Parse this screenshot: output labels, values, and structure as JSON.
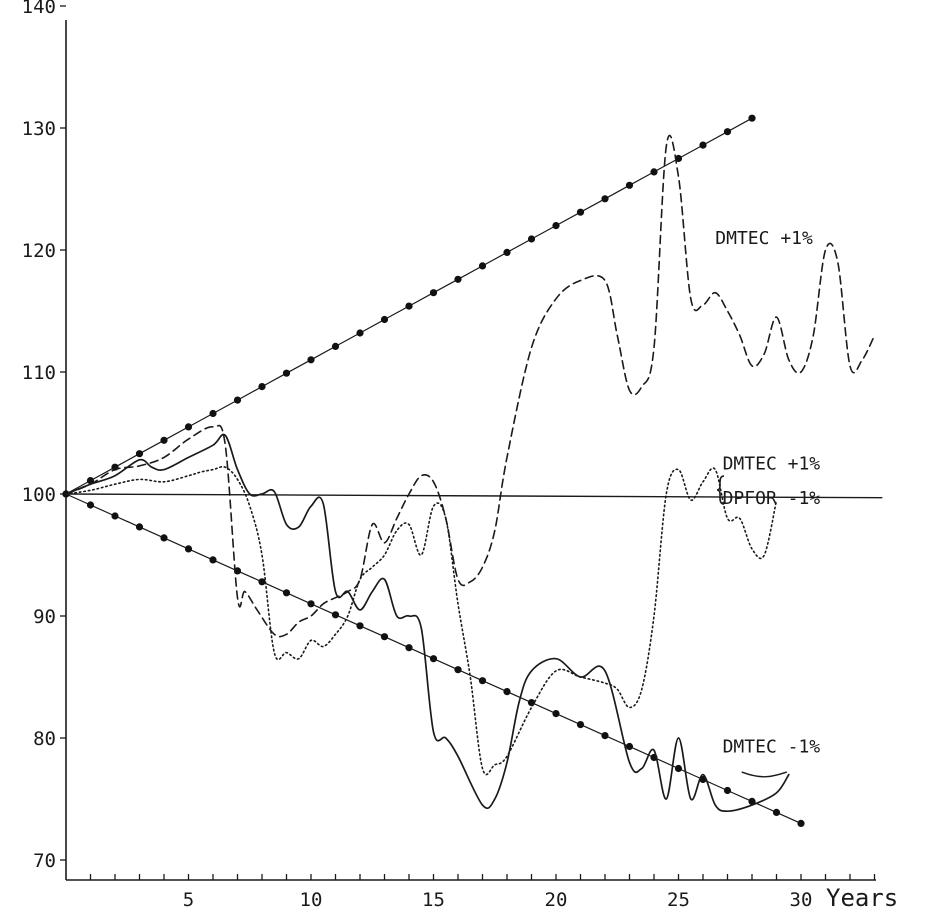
{
  "chart_data": {
    "type": "line",
    "title": "",
    "xlabel": "Years",
    "ylabel": "",
    "xlim": [
      0,
      33
    ],
    "ylim": [
      70,
      140
    ],
    "x_ticks": [
      5,
      10,
      15,
      20,
      25,
      30
    ],
    "y_ticks": [
      70,
      80,
      90,
      100,
      110,
      120,
      130,
      140
    ],
    "grid": false,
    "annotations": [
      {
        "text": "DMTEC +1%",
        "x": 26.5,
        "y": 120.5
      },
      {
        "text": "DMTEC +1%",
        "x": 26.8,
        "y": 102.0
      },
      {
        "text": "DPFOR -1%",
        "x": 26.8,
        "y": 99.2
      },
      {
        "text": "DMTEC -1%",
        "x": 26.8,
        "y": 78.8
      }
    ],
    "series": [
      {
        "style": "dotted-line-with-markers",
        "x": [
          0,
          1,
          2,
          3,
          4,
          5,
          6,
          7,
          8,
          9,
          10,
          11,
          12,
          13,
          14,
          15,
          16,
          17,
          18,
          19,
          20,
          21,
          22,
          23,
          24,
          25,
          26,
          27,
          28
        ],
        "y": [
          100,
          101.1,
          102.2,
          103.3,
          104.4,
          105.5,
          106.6,
          107.7,
          108.8,
          109.9,
          111,
          112.1,
          113.2,
          114.3,
          115.4,
          116.5,
          117.6,
          118.7,
          119.8,
          120.9,
          122,
          123.1,
          124.2,
          125.3,
          126.4,
          127.5,
          128.6,
          129.7,
          130.8
        ]
      },
      {
        "style": "dotted-line-with-markers",
        "x": [
          0,
          1,
          2,
          3,
          4,
          5,
          6,
          7,
          8,
          9,
          10,
          11,
          12,
          13,
          14,
          15,
          16,
          17,
          18,
          19,
          20,
          21,
          22,
          23,
          24,
          25,
          26,
          27,
          28,
          29,
          30
        ],
        "y": [
          100,
          99.1,
          98.2,
          97.3,
          96.4,
          95.5,
          94.6,
          93.7,
          92.8,
          91.9,
          91,
          90.1,
          89.2,
          88.3,
          87.4,
          86.5,
          85.6,
          84.7,
          83.8,
          82.9,
          82,
          81.1,
          80.2,
          79.3,
          78.4,
          77.5,
          76.6,
          75.7,
          74.8,
          73.9,
          73
        ]
      },
      {
        "style": "solid-thin",
        "x": [
          0,
          33.3
        ],
        "y": [
          100,
          99.7
        ]
      },
      {
        "style": "dashed",
        "x": [
          0,
          1,
          2,
          3,
          4,
          5,
          6,
          6.5,
          7,
          7.3,
          7.8,
          8.5,
          9,
          9.5,
          10,
          10.5,
          11,
          11.5,
          12,
          12.5,
          13,
          13.5,
          14,
          14.5,
          15,
          15.5,
          16,
          16.5,
          17,
          17.5,
          18,
          19,
          20,
          21,
          22,
          22.5,
          23,
          23.5,
          24,
          24.5,
          25,
          25.5,
          26,
          26.5,
          27,
          27.5,
          28,
          28.5,
          29,
          29.5,
          30,
          30.5,
          31,
          31.5,
          32,
          32.5,
          33
        ],
        "y": [
          100,
          100.8,
          102,
          102.3,
          103,
          104.5,
          105.5,
          104,
          91.5,
          92,
          90.5,
          88.5,
          88.5,
          89.5,
          90,
          91,
          91.5,
          92,
          93,
          97.5,
          96,
          98,
          100,
          101.5,
          101,
          98,
          93,
          92.8,
          94,
          97,
          103,
          112,
          116,
          117.5,
          117.5,
          113,
          108.5,
          108.8,
          112,
          128.5,
          126,
          116,
          115.5,
          116.5,
          115,
          113,
          110.5,
          111.5,
          114.5,
          111,
          110,
          113,
          120,
          119,
          110.5,
          111,
          113
        ]
      },
      {
        "style": "solid",
        "x": [
          0,
          1,
          2,
          3,
          3.5,
          4,
          5,
          6,
          6.5,
          7,
          7.5,
          8,
          8.5,
          9,
          9.5,
          10,
          10.5,
          11,
          11.5,
          12,
          12.5,
          13,
          13.5,
          14,
          14.5,
          15,
          15.5,
          16,
          17,
          17.5,
          18,
          18.5,
          19,
          20,
          21,
          22,
          23,
          23.5,
          24,
          24.5,
          25,
          25.5,
          26,
          26.5,
          27,
          28,
          29,
          29.5
        ],
        "y": [
          100,
          100.8,
          101.5,
          102.8,
          102.2,
          102,
          103,
          104,
          104.8,
          102,
          100,
          100,
          100.2,
          97.5,
          97.3,
          99,
          99.2,
          92,
          92,
          90.5,
          92,
          93,
          90,
          90,
          89,
          80.5,
          80,
          78.5,
          74.5,
          75,
          78,
          83,
          85.5,
          86.5,
          85,
          85.5,
          78,
          77.5,
          79,
          75,
          80,
          75,
          77,
          74.5,
          74,
          74.5,
          75.5,
          77
        ]
      },
      {
        "style": "dotted",
        "x": [
          0,
          1,
          2,
          3,
          4,
          5,
          5.5,
          6,
          6.5,
          7,
          7.5,
          8,
          8.5,
          9,
          9.5,
          10,
          10.5,
          11,
          11.5,
          12,
          12.5,
          13,
          13.5,
          14,
          14.5,
          15,
          15.5,
          16,
          16.5,
          17,
          17.5,
          18,
          19,
          20,
          21,
          22,
          22.5,
          23,
          23.5,
          24,
          24.5,
          25,
          25.5,
          26,
          26.5,
          27,
          27.5,
          28,
          28.5,
          29
        ],
        "y": [
          100,
          100.3,
          100.8,
          101.2,
          101,
          101.5,
          101.8,
          102,
          102.2,
          101.2,
          99,
          95,
          87,
          87,
          86.5,
          88,
          87.5,
          88.5,
          90,
          93,
          94,
          95,
          97,
          97.5,
          95,
          99,
          98,
          91,
          85,
          77.5,
          77.8,
          78.5,
          82.5,
          85.5,
          85,
          84.5,
          84,
          82.5,
          84,
          90,
          100,
          102,
          99.5,
          101,
          102,
          98,
          98,
          95.5,
          95,
          99.5
        ]
      }
    ]
  }
}
